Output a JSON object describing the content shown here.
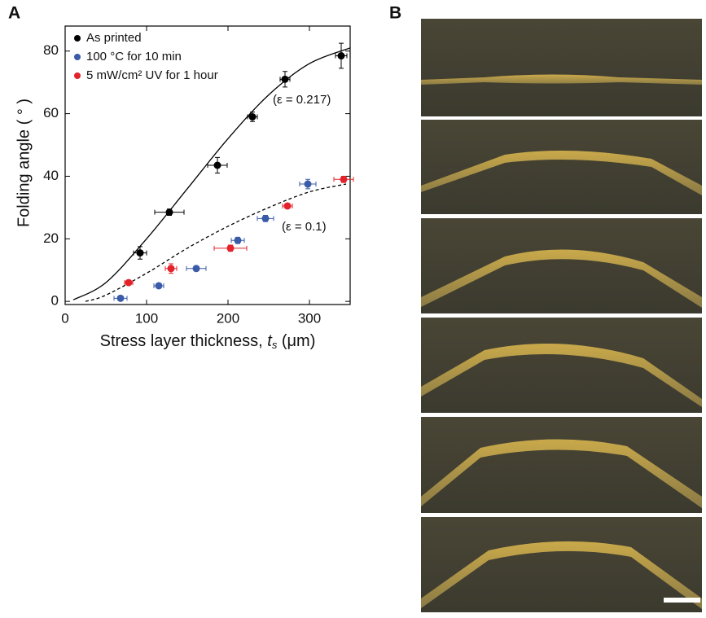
{
  "panel_labels": [
    "A",
    "B"
  ],
  "chart_data": {
    "type": "scatter",
    "ylabel": "Folding angle ( ° )",
    "xlabel": {
      "pre": "Stress layer thickness, ",
      "var": "t",
      "sub": "s",
      "post": " (μm)"
    },
    "xlim": [
      0,
      350
    ],
    "xticks": [
      0,
      100,
      200,
      300
    ],
    "ylim": [
      -1,
      88
    ],
    "yticks": [
      0,
      20,
      40,
      60,
      80
    ],
    "legend": "upper left",
    "series": [
      {
        "name": "As printed",
        "color": "#000000",
        "x": [
          92,
          128,
          187,
          230,
          270,
          339
        ],
        "values": [
          15.5,
          28.5,
          43.5,
          59,
          71,
          78.5
        ],
        "xerr": [
          8,
          18,
          12,
          6,
          6,
          7
        ],
        "yerr": [
          2,
          1,
          2.5,
          1.5,
          2.5,
          4
        ]
      },
      {
        "name": "100 °C for 10 min",
        "color": "#3a5ba8",
        "x": [
          68,
          115,
          161,
          212,
          246,
          298
        ],
        "values": [
          1,
          5,
          10.5,
          19.5,
          26.5,
          37.5
        ],
        "xerr": [
          8,
          6,
          12,
          8,
          10,
          10
        ],
        "yerr": [
          0.5,
          0.5,
          0.5,
          1,
          1,
          1.5
        ]
      },
      {
        "name": "5 mW/cm² UV for 1 hour",
        "color": "#e3232c",
        "x": [
          78,
          130,
          203,
          273,
          342
        ],
        "values": [
          6,
          10.5,
          17,
          30.5,
          39
        ],
        "xerr": [
          5,
          7,
          20,
          6,
          12
        ],
        "yerr": [
          0.5,
          1.5,
          1,
          0.5,
          1
        ]
      }
    ],
    "fits": [
      {
        "label": "(ε = 0.217)",
        "style": "solid",
        "color": "#000000",
        "x": [
          10,
          50,
          100,
          150,
          200,
          250,
          300,
          350
        ],
        "values": [
          0.5,
          6,
          20,
          36,
          52,
          66,
          76,
          81
        ]
      },
      {
        "label": "(ε = 0.1)",
        "style": "dashed",
        "color": "#000000",
        "x": [
          25,
          50,
          100,
          150,
          200,
          250,
          300,
          345
        ],
        "values": [
          0,
          2,
          9,
          17,
          24,
          30,
          35,
          37.5
        ]
      }
    ]
  }
}
